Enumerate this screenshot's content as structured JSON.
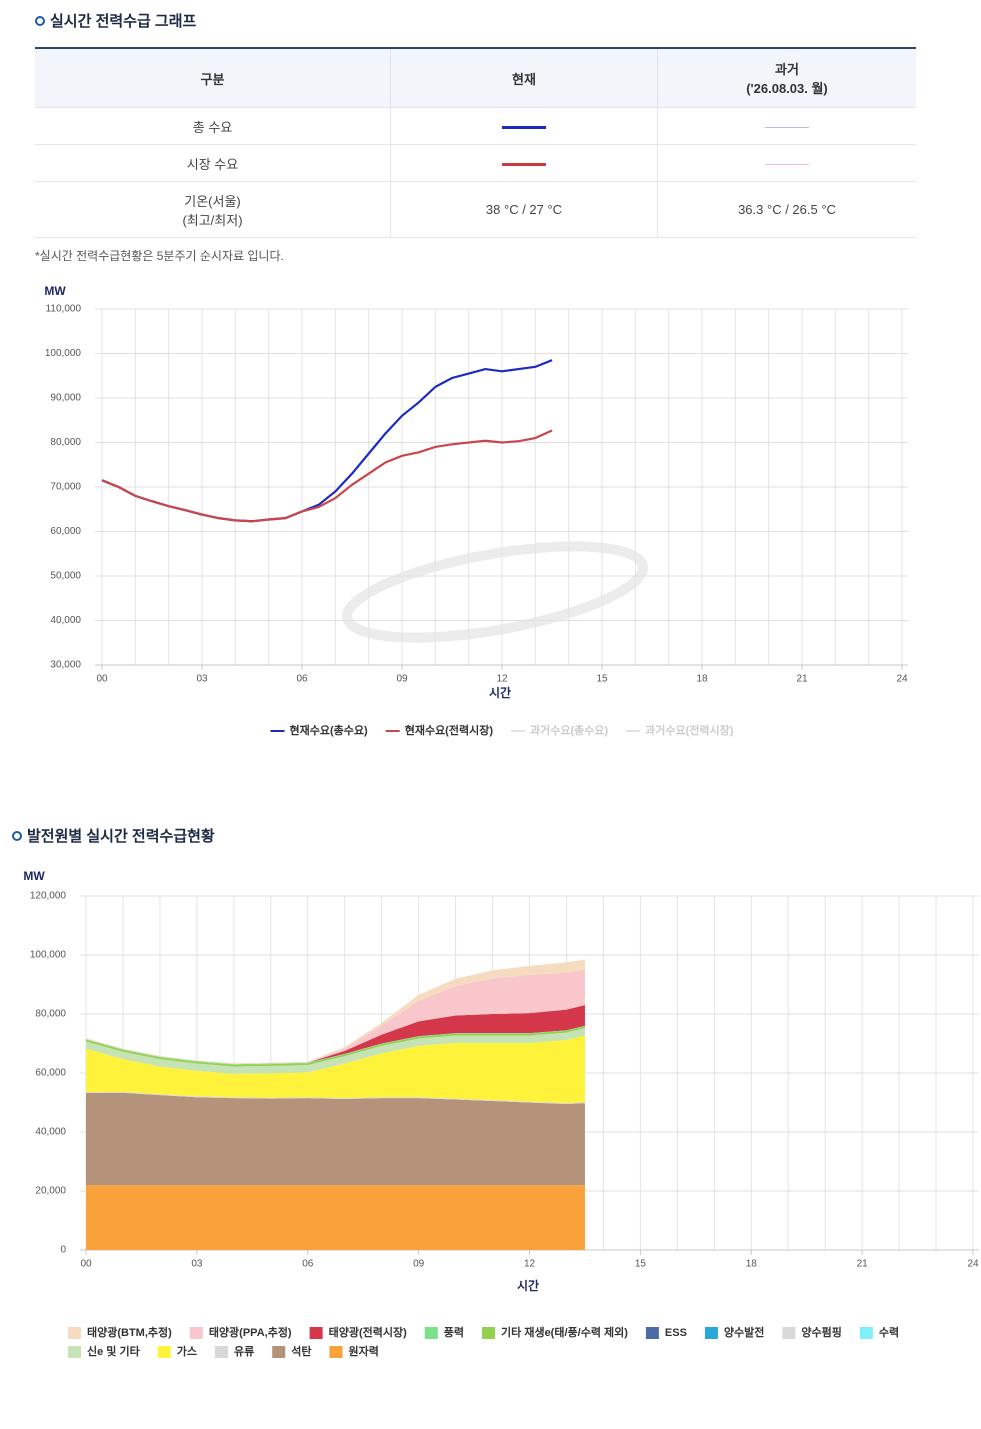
{
  "sections": [
    {
      "title": "실시간 전력수급 그래프"
    },
    {
      "title": "발전원별 실시간 전력수급현황"
    }
  ],
  "table": {
    "header": [
      "구분",
      "현재",
      [
        "과거",
        "('26.08.03. 월)"
      ]
    ],
    "rows": [
      {
        "label": [
          "총 수요"
        ],
        "current_color": "#1c2bbf",
        "past_color": "#b8c0d8"
      },
      {
        "label": [
          "시장 수요"
        ],
        "current_color": "#c9393f",
        "past_color": "#f0c3cb"
      },
      {
        "label": [
          "기온(서울)",
          "(최고/최저)"
        ],
        "current": "38 °C / 27 °C",
        "past": "36.3 °C / 26.5 °C"
      }
    ]
  },
  "note": "*실시간 전력수급현황은 5분주기 순시자료 입니다.",
  "chart_data": [
    {
      "type": "line",
      "y_label": "MW",
      "x_label": "시간",
      "x": [
        0,
        0.5,
        1,
        1.5,
        2,
        2.5,
        3,
        3.5,
        4,
        4.5,
        5,
        5.5,
        6,
        6.5,
        7,
        7.5,
        8,
        8.5,
        9,
        9.5,
        10,
        10.5,
        11,
        11.5,
        12,
        12.5,
        13,
        13.5
      ],
      "xlim": [
        0,
        24
      ],
      "xticks": [
        {
          "value": 0,
          "label": "00"
        },
        {
          "value": 3,
          "label": "03"
        },
        {
          "value": 6,
          "label": "06"
        },
        {
          "value": 9,
          "label": "09"
        },
        12,
        15,
        18,
        21,
        24
      ],
      "x_minor_step": 1,
      "ylim": [
        30000,
        110000
      ],
      "yticks": [
        {
          "value": 30000,
          "label": "30,000"
        },
        {
          "value": 40000,
          "label": "40,000"
        },
        {
          "value": 50000,
          "label": "50,000"
        },
        {
          "value": 60000,
          "label": "60,000"
        },
        {
          "value": 70000,
          "label": "70,000"
        },
        {
          "value": 80000,
          "label": "80,000"
        },
        {
          "value": 90000,
          "label": "90,000"
        },
        {
          "value": 100000,
          "label": "100,000"
        },
        {
          "value": 110000,
          "label": "110,000"
        }
      ],
      "grid": true,
      "legend": "bottom",
      "series": [
        {
          "name": "현재수요(총수요)",
          "color": "#1c2bbf",
          "visible": true,
          "values": [
            71500,
            70000,
            68000,
            66800,
            65700,
            64800,
            63800,
            63000,
            62500,
            62300,
            62700,
            63000,
            64500,
            66000,
            69000,
            73000,
            77500,
            82000,
            86000,
            89000,
            92500,
            94500,
            95500,
            96500,
            96000,
            96500,
            97000,
            98500
          ]
        },
        {
          "name": "현재수요(전력시장)",
          "color": "#c9474b",
          "visible": true,
          "values": [
            71500,
            70000,
            68000,
            66800,
            65700,
            64800,
            63800,
            63000,
            62500,
            62300,
            62700,
            63000,
            64500,
            65500,
            67500,
            70500,
            73000,
            75500,
            77000,
            77800,
            79000,
            79600,
            80000,
            80400,
            80000,
            80300,
            81000,
            82700
          ]
        },
        {
          "name": "과거수요(총수요)",
          "color": "#b8c0d8",
          "visible": false,
          "values": [
            null,
            null,
            null,
            null,
            null,
            null,
            null,
            null,
            null,
            null,
            null,
            null,
            null,
            null,
            null,
            null,
            null,
            null,
            null,
            null,
            null,
            null,
            null,
            null,
            null,
            null,
            null,
            null
          ]
        },
        {
          "name": "과거수요(전력시장)",
          "color": "#f0c3cb",
          "visible": false,
          "values": [
            null,
            null,
            null,
            null,
            null,
            null,
            null,
            null,
            null,
            null,
            null,
            null,
            null,
            null,
            null,
            null,
            null,
            null,
            null,
            null,
            null,
            null,
            null,
            null,
            null,
            null,
            null,
            null
          ]
        }
      ]
    },
    {
      "type": "area",
      "stacked": true,
      "y_label": "MW",
      "x_label": "시간",
      "x": [
        0,
        1,
        2,
        3,
        4,
        5,
        6,
        7,
        8,
        9,
        10,
        11,
        12,
        13,
        13.5
      ],
      "xlim": [
        0,
        24
      ],
      "xticks": [
        {
          "value": 0,
          "label": "00"
        },
        {
          "value": 3,
          "label": "03"
        },
        {
          "value": 6,
          "label": "06"
        },
        {
          "value": 9,
          "label": "09"
        },
        12,
        15,
        18,
        21,
        24
      ],
      "x_minor_step": 1,
      "ylim": [
        0,
        120000
      ],
      "yticks": [
        0,
        {
          "value": 20000,
          "label": "20,000"
        },
        {
          "value": 40000,
          "label": "40,000"
        },
        {
          "value": 60000,
          "label": "60,000"
        },
        {
          "value": 80000,
          "label": "80,000"
        },
        {
          "value": 100000,
          "label": "100,000"
        },
        {
          "value": 120000,
          "label": "120,000"
        }
      ],
      "grid": true,
      "legend": "bottom-left",
      "series": [
        {
          "name": "태양광(BTM,추정)",
          "color": "#f5dcc0",
          "values": [
            300,
            300,
            300,
            300,
            300,
            300,
            300,
            500,
            1000,
            2000,
            2500,
            2800,
            3000,
            3500,
            3500
          ]
        },
        {
          "name": "태양광(PPA,추정)",
          "color": "#f9c6cc",
          "values": [
            0,
            0,
            0,
            0,
            0,
            0,
            0,
            800,
            3000,
            7000,
            10000,
            12000,
            13000,
            12500,
            12000
          ]
        },
        {
          "name": "태양광(전력시장)",
          "color": "#d4374a",
          "values": [
            0,
            0,
            0,
            0,
            0,
            0,
            0,
            1000,
            3000,
            5000,
            6000,
            6500,
            6800,
            7000,
            7000
          ]
        },
        {
          "name": "풍력",
          "color": "#7be08a",
          "values": [
            200,
            200,
            200,
            200,
            200,
            200,
            200,
            200,
            200,
            200,
            200,
            200,
            200,
            200,
            200
          ]
        },
        {
          "name": "기타 재생e(태/풍/수력 제외)",
          "color": "#92d050",
          "values": [
            600,
            600,
            600,
            600,
            600,
            600,
            600,
            600,
            600,
            600,
            600,
            600,
            600,
            600,
            600
          ]
        },
        {
          "name": "ESS",
          "color": "#4a6aa8",
          "values": [
            0,
            0,
            0,
            0,
            0,
            0,
            0,
            0,
            0,
            0,
            0,
            0,
            0,
            0,
            0
          ]
        },
        {
          "name": "양수발전",
          "color": "#2aa8d8",
          "values": [
            0,
            0,
            0,
            0,
            0,
            0,
            0,
            0,
            0,
            0,
            0,
            0,
            0,
            0,
            0
          ]
        },
        {
          "name": "양수펌핑",
          "color": "#d9d9d9",
          "values": [
            0,
            0,
            0,
            0,
            0,
            0,
            0,
            0,
            0,
            0,
            0,
            0,
            0,
            0,
            0
          ]
        },
        {
          "name": "수력",
          "color": "#7ff0f8",
          "values": [
            0,
            0,
            0,
            0,
            0,
            0,
            0,
            0,
            0,
            0,
            0,
            0,
            0,
            0,
            0
          ]
        },
        {
          "name": "신e 및 기타",
          "color": "#c6e3b6",
          "values": [
            2500,
            2500,
            2500,
            2500,
            2500,
            2500,
            2500,
            2500,
            2500,
            2500,
            2500,
            2500,
            2500,
            2500,
            2500
          ]
        },
        {
          "name": "가스",
          "color": "#fff23a",
          "values": [
            14700,
            11100,
            9400,
            8600,
            7900,
            8300,
            8400,
            11700,
            14900,
            17400,
            18900,
            19400,
            19900,
            21400,
            22600
          ]
        },
        {
          "name": "유류",
          "color": "#d8d8d8",
          "values": [
            300,
            300,
            300,
            300,
            300,
            300,
            300,
            300,
            300,
            300,
            300,
            300,
            300,
            300,
            300
          ]
        },
        {
          "name": "석탄",
          "color": "#b5937a",
          "values": [
            31200,
            31300,
            30500,
            29800,
            29500,
            29300,
            29500,
            29200,
            29500,
            29500,
            29000,
            28500,
            28000,
            27500,
            27800
          ]
        },
        {
          "name": "원자력",
          "color": "#f9a23c",
          "values": [
            22000,
            22000,
            22000,
            22000,
            22000,
            22000,
            22000,
            22000,
            22000,
            22000,
            22000,
            22000,
            22000,
            22000,
            22000
          ]
        }
      ]
    }
  ]
}
